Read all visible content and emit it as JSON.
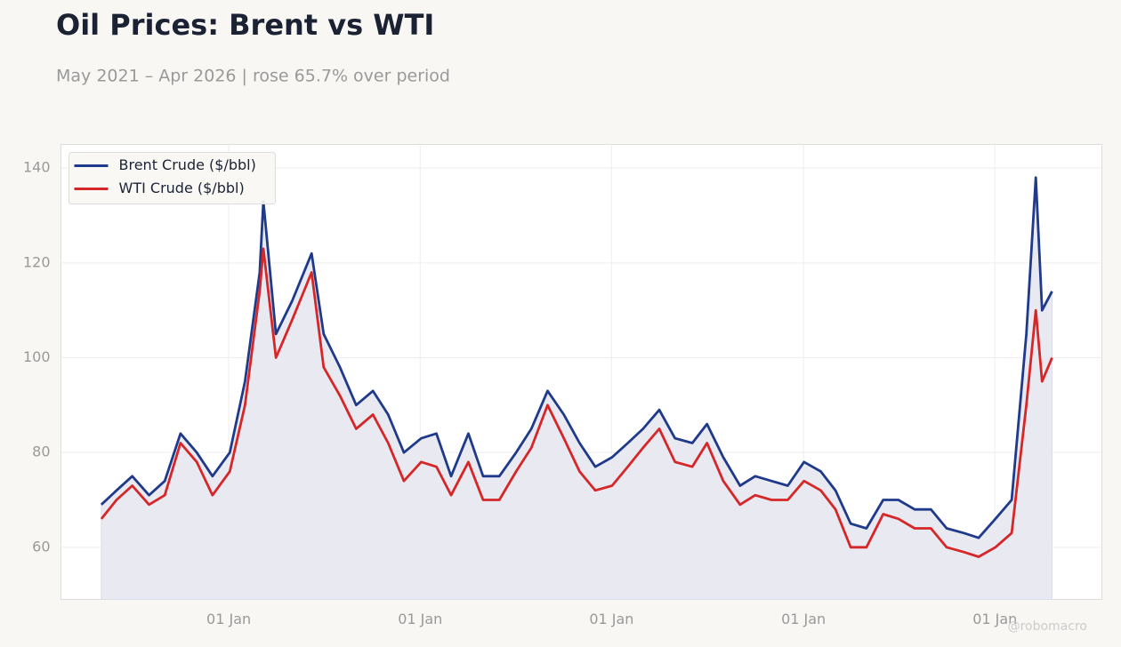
{
  "chart_data": {
    "type": "line",
    "title": "Oil Prices: Brent vs WTI",
    "subtitle": "May 2021 – Apr 2026 | rose 65.7% over period",
    "watermark": "@robomacro",
    "x": [
      "2021-05-03",
      "2021-06-01",
      "2021-07-01",
      "2021-08-02",
      "2021-09-01",
      "2021-10-01",
      "2021-11-01",
      "2021-12-01",
      "2022-01-03",
      "2022-02-01",
      "2022-03-01",
      "2022-03-08",
      "2022-04-01",
      "2022-05-02",
      "2022-06-08",
      "2022-07-01",
      "2022-08-01",
      "2022-09-01",
      "2022-10-03",
      "2022-11-01",
      "2022-12-01",
      "2023-01-03",
      "2023-02-01",
      "2023-03-01",
      "2023-04-03",
      "2023-05-01",
      "2023-06-01",
      "2023-07-03",
      "2023-08-01",
      "2023-09-01",
      "2023-10-02",
      "2023-11-01",
      "2023-12-01",
      "2024-01-02",
      "2024-02-01",
      "2024-03-01",
      "2024-04-01",
      "2024-05-01",
      "2024-06-03",
      "2024-07-01",
      "2024-08-01",
      "2024-09-02",
      "2024-10-01",
      "2024-11-01",
      "2024-12-02",
      "2025-01-02",
      "2025-02-03",
      "2025-03-03",
      "2025-04-01",
      "2025-05-01",
      "2025-06-02",
      "2025-07-01",
      "2025-08-01",
      "2025-09-01",
      "2025-10-01",
      "2025-11-03",
      "2025-12-01",
      "2026-01-02",
      "2026-02-02",
      "2026-03-02",
      "2026-03-20",
      "2026-04-01",
      "2026-04-20"
    ],
    "series": [
      {
        "name": "Brent Crude ($/bbl)",
        "color": "#1f3a8a",
        "values": [
          69,
          72,
          75,
          71,
          74,
          84,
          80,
          75,
          80,
          95,
          118,
          133,
          105,
          112,
          122,
          105,
          98,
          90,
          93,
          88,
          80,
          83,
          84,
          75,
          84,
          75,
          75,
          80,
          85,
          93,
          88,
          82,
          77,
          79,
          82,
          85,
          89,
          83,
          82,
          86,
          79,
          73,
          75,
          74,
          73,
          78,
          76,
          72,
          65,
          64,
          70,
          70,
          68,
          68,
          64,
          63,
          62,
          66,
          70,
          105,
          138,
          110,
          114
        ]
      },
      {
        "name": "WTI Crude ($/bbl)",
        "color": "#d62728",
        "values": [
          66,
          70,
          73,
          69,
          71,
          82,
          78,
          71,
          76,
          90,
          114,
          123,
          100,
          108,
          118,
          98,
          92,
          85,
          88,
          82,
          74,
          78,
          77,
          71,
          78,
          70,
          70,
          76,
          81,
          90,
          83,
          76,
          72,
          73,
          77,
          81,
          85,
          78,
          77,
          82,
          74,
          69,
          71,
          70,
          70,
          74,
          72,
          68,
          60,
          60,
          67,
          66,
          64,
          64,
          60,
          59,
          58,
          60,
          63,
          90,
          110,
          95,
          100
        ]
      }
    ],
    "area_under": "chart_data.series.0",
    "area_color": "#e9e9f2",
    "xlim": [
      "2021-02-15",
      "2026-07-24"
    ],
    "xticks": [
      {
        "value": "2022-01-01",
        "label": "01 Jan"
      },
      {
        "value": "2023-01-01",
        "label": "01 Jan"
      },
      {
        "value": "2024-01-01",
        "label": "01 Jan"
      },
      {
        "value": "2025-01-01",
        "label": "01 Jan"
      },
      {
        "value": "2026-01-01",
        "label": "01 Jan"
      }
    ],
    "ylim": [
      49,
      145
    ],
    "yticks": [
      60,
      80,
      100,
      120,
      140
    ],
    "grid": true,
    "legend": "upper-left"
  }
}
